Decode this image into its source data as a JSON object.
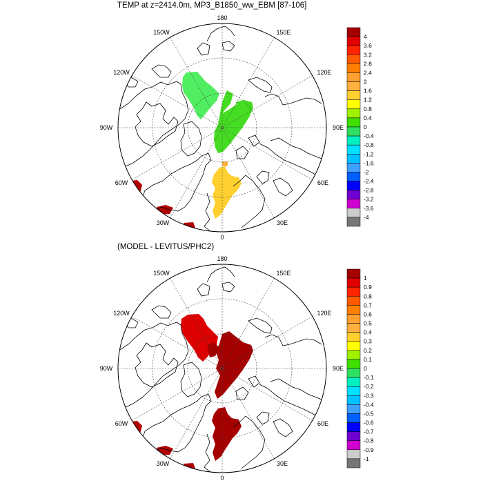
{
  "title_top": "TEMP at z=2414.0m, MP3_B1850_ww_EBM [87-106]",
  "title_bottom": "(MODEL - LEVITUS/PHC2)",
  "longitude_labels": [
    "180",
    "150E",
    "120E",
    "90E",
    "60E",
    "30E",
    "0",
    "30W",
    "60W",
    "90W",
    "120W",
    "150W"
  ],
  "colorbar_top": {
    "labels": [
      "4",
      "3.6",
      "3.2",
      "2.8",
      "2.4",
      "2",
      "1.6",
      "1.2",
      "0.8",
      "0.4",
      "0",
      "-0.4",
      "-0.8",
      "-1.2",
      "-1.6",
      "-2",
      "-2.4",
      "-2.8",
      "-3.2",
      "-3.6",
      "-4"
    ],
    "colors": [
      "#a40000",
      "#e00000",
      "#ff2400",
      "#ff5a00",
      "#ff8000",
      "#ffa030",
      "#ffb040",
      "#ffd030",
      "#ffff00",
      "#a0f000",
      "#40e000",
      "#30e060",
      "#00f0c0",
      "#00e0ff",
      "#00c0ff",
      "#40a0ff",
      "#0060ff",
      "#0000ff",
      "#7000d0",
      "#d000d0",
      "#cccccc",
      "#777777"
    ]
  },
  "colorbar_bottom": {
    "labels": [
      "1",
      "0.9",
      "0.8",
      "0.7",
      "0.6",
      "0.5",
      "0.4",
      "0.3",
      "0.2",
      "0.1",
      "0",
      "-0.1",
      "-0.2",
      "-0.3",
      "-0.4",
      "-0.5",
      "-0.6",
      "-0.7",
      "-0.8",
      "-0.9",
      "-1"
    ],
    "colors": [
      "#a40000",
      "#e00000",
      "#ff2400",
      "#ff5a00",
      "#ff8000",
      "#ffa030",
      "#ffb040",
      "#ffd030",
      "#ffff00",
      "#a0f000",
      "#40e000",
      "#30e060",
      "#00f0c0",
      "#00e0ff",
      "#00c0ff",
      "#40a0ff",
      "#0060ff",
      "#0000ff",
      "#7000d0",
      "#d000d0",
      "#cccccc",
      "#777777"
    ]
  },
  "field_colors_top": {
    "pacific_side": "#50ee60",
    "eurasian_basin": "#44dd22",
    "atlantic_side": "#ffd030",
    "nordic_patch": "#ffb040",
    "edge_patches": "#b00000"
  },
  "field_colors_bottom": {
    "canada_basin": "#dd0000",
    "eurasian_basin": "#a40000",
    "atlantic_side": "#a40000",
    "edge_patches": "#b00000"
  }
}
